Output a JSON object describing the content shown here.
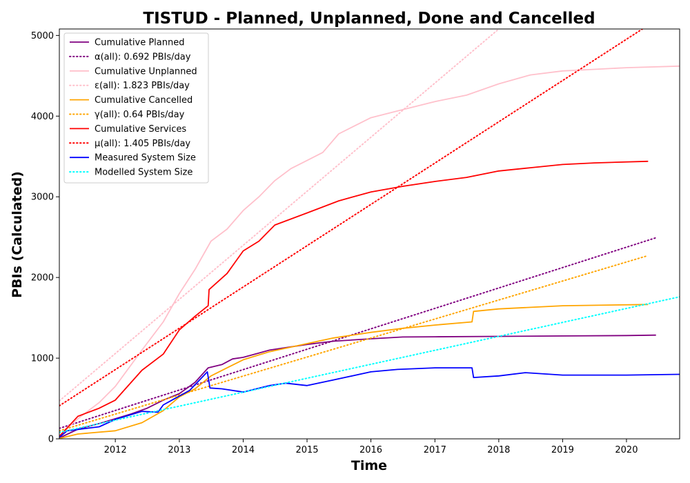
{
  "chart_data": {
    "type": "line",
    "title": "TISTUD - Planned, Unplanned, Done  and Cancelled",
    "xlabel": "Time",
    "ylabel": "PBIs (Calculated)",
    "xlim": [
      "2011-02-15",
      "2020-10-31"
    ],
    "ylim": [
      0,
      5080
    ],
    "x_ticks": [
      "2012",
      "2013",
      "2014",
      "2015",
      "2016",
      "2017",
      "2018",
      "2019",
      "2020"
    ],
    "y_ticks": [
      0,
      1000,
      2000,
      3000,
      4000,
      5000
    ],
    "y_tick_labels": [
      "0",
      "1000",
      "2000",
      "3000",
      "4000",
      "5000"
    ],
    "grid": false,
    "legend_position": "top-left",
    "series": [
      {
        "name": "Cumulative Planned",
        "color": "#800080",
        "style": "solid",
        "x": [
          "2011-02-15",
          "2011-06-01",
          "2011-10-01",
          "2012-01-01",
          "2012-04-01",
          "2012-07-01",
          "2012-10-01",
          "2013-01-01",
          "2013-04-01",
          "2013-06-15",
          "2013-09-01",
          "2013-11-01",
          "2014-01-01",
          "2014-06-01",
          "2015-01-01",
          "2015-06-01",
          "2016-01-01",
          "2016-07-01",
          "2017-01-01",
          "2018-01-01",
          "2019-01-01",
          "2020-01-01",
          "2020-06-15"
        ],
        "values": [
          10,
          120,
          190,
          250,
          310,
          380,
          480,
          560,
          700,
          880,
          920,
          990,
          1010,
          1100,
          1170,
          1210,
          1240,
          1262,
          1265,
          1270,
          1275,
          1280,
          1285
        ]
      },
      {
        "name": "α(all): 0.692 PBIs/day",
        "color": "#800080",
        "style": "dotted",
        "x": [
          "2011-02-15",
          "2020-06-15"
        ],
        "values": [
          130,
          2490
        ]
      },
      {
        "name": "Cumulative Unplanned",
        "color": "#ffc0cb",
        "style": "solid",
        "x": [
          "2011-02-15",
          "2011-06-01",
          "2011-10-01",
          "2012-01-01",
          "2012-06-01",
          "2012-10-01",
          "2013-01-01",
          "2013-04-01",
          "2013-07-01",
          "2013-10-01",
          "2014-01-01",
          "2014-04-01",
          "2014-07-01",
          "2014-10-01",
          "2015-01-01",
          "2015-04-01",
          "2015-07-01",
          "2016-01-01",
          "2016-07-01",
          "2017-01-01",
          "2017-07-01",
          "2018-01-01",
          "2018-07-01",
          "2019-01-01",
          "2019-07-01",
          "2020-01-01",
          "2020-10-31"
        ],
        "values": [
          40,
          250,
          450,
          650,
          1100,
          1450,
          1800,
          2100,
          2450,
          2600,
          2830,
          3000,
          3200,
          3350,
          3450,
          3550,
          3780,
          3980,
          4080,
          4180,
          4260,
          4400,
          4510,
          4560,
          4580,
          4600,
          4620
        ]
      },
      {
        "name": "ε(all): 1.823 PBIs/day",
        "color": "#ffc0cb",
        "style": "dotted",
        "x": [
          "2011-02-15",
          "2018-01-01"
        ],
        "values": [
          470,
          5080
        ]
      },
      {
        "name": "Cumulative Cancelled",
        "color": "#ffa500",
        "style": "solid",
        "x": [
          "2011-02-15",
          "2011-06-01",
          "2012-01-01",
          "2012-06-01",
          "2012-10-01",
          "2013-01-01",
          "2013-04-01",
          "2013-07-01",
          "2013-10-01",
          "2014-01-01",
          "2014-06-01",
          "2015-01-01",
          "2015-06-01",
          "2016-01-01",
          "2016-07-01",
          "2017-01-01",
          "2017-08-01",
          "2017-08-10",
          "2018-01-01",
          "2019-01-01",
          "2020-05-01"
        ],
        "values": [
          5,
          60,
          100,
          200,
          350,
          520,
          620,
          780,
          880,
          980,
          1080,
          1180,
          1250,
          1320,
          1370,
          1410,
          1450,
          1580,
          1610,
          1650,
          1665
        ]
      },
      {
        "name": "γ(all): 0.64 PBIs/day",
        "color": "#ffa500",
        "style": "dotted",
        "x": [
          "2011-02-15",
          "2020-05-01"
        ],
        "values": [
          100,
          2270
        ]
      },
      {
        "name": "Cumulative Services",
        "color": "#ff0000",
        "style": "solid",
        "x": [
          "2011-02-15",
          "2011-06-01",
          "2011-10-01",
          "2012-01-01",
          "2012-06-01",
          "2012-10-01",
          "2013-01-01",
          "2013-04-01",
          "2013-06-15",
          "2013-06-20",
          "2013-10-01",
          "2014-01-01",
          "2014-04-01",
          "2014-07-01",
          "2015-01-01",
          "2015-07-01",
          "2016-01-01",
          "2016-07-01",
          "2017-01-01",
          "2017-07-01",
          "2018-01-01",
          "2018-07-01",
          "2019-01-01",
          "2019-07-01",
          "2020-05-01"
        ],
        "values": [
          30,
          280,
          380,
          480,
          850,
          1050,
          1350,
          1520,
          1650,
          1850,
          2050,
          2330,
          2450,
          2650,
          2800,
          2950,
          3060,
          3130,
          3190,
          3240,
          3320,
          3360,
          3400,
          3420,
          3440
        ]
      },
      {
        "name": "μ(all): 1.405 PBIs/day",
        "color": "#ff0000",
        "style": "dotted",
        "x": [
          "2011-02-15",
          "2020-04-01"
        ],
        "values": [
          410,
          5080
        ]
      },
      {
        "name": "Measured System Size",
        "color": "#0000ff",
        "style": "solid",
        "x": [
          "2011-02-15",
          "2011-04-01",
          "2011-10-01",
          "2012-01-01",
          "2012-06-01",
          "2012-09-01",
          "2012-10-01",
          "2013-01-01",
          "2013-03-01",
          "2013-06-10",
          "2013-06-25",
          "2013-09-01",
          "2014-01-01",
          "2014-06-01",
          "2014-09-01",
          "2015-01-01",
          "2015-06-01",
          "2016-01-01",
          "2016-06-01",
          "2017-01-01",
          "2017-08-01",
          "2017-08-10",
          "2018-01-01",
          "2018-06-01",
          "2019-01-01",
          "2020-01-01",
          "2020-10-31"
        ],
        "values": [
          20,
          100,
          150,
          240,
          340,
          330,
          420,
          530,
          600,
          830,
          630,
          620,
          580,
          660,
          690,
          660,
          730,
          830,
          860,
          880,
          880,
          760,
          780,
          820,
          790,
          790,
          800
        ]
      },
      {
        "name": "Modelled System Size",
        "color": "#00ffff",
        "style": "dotted",
        "x": [
          "2011-02-15",
          "2020-10-31"
        ],
        "values": [
          80,
          1760
        ]
      }
    ]
  }
}
